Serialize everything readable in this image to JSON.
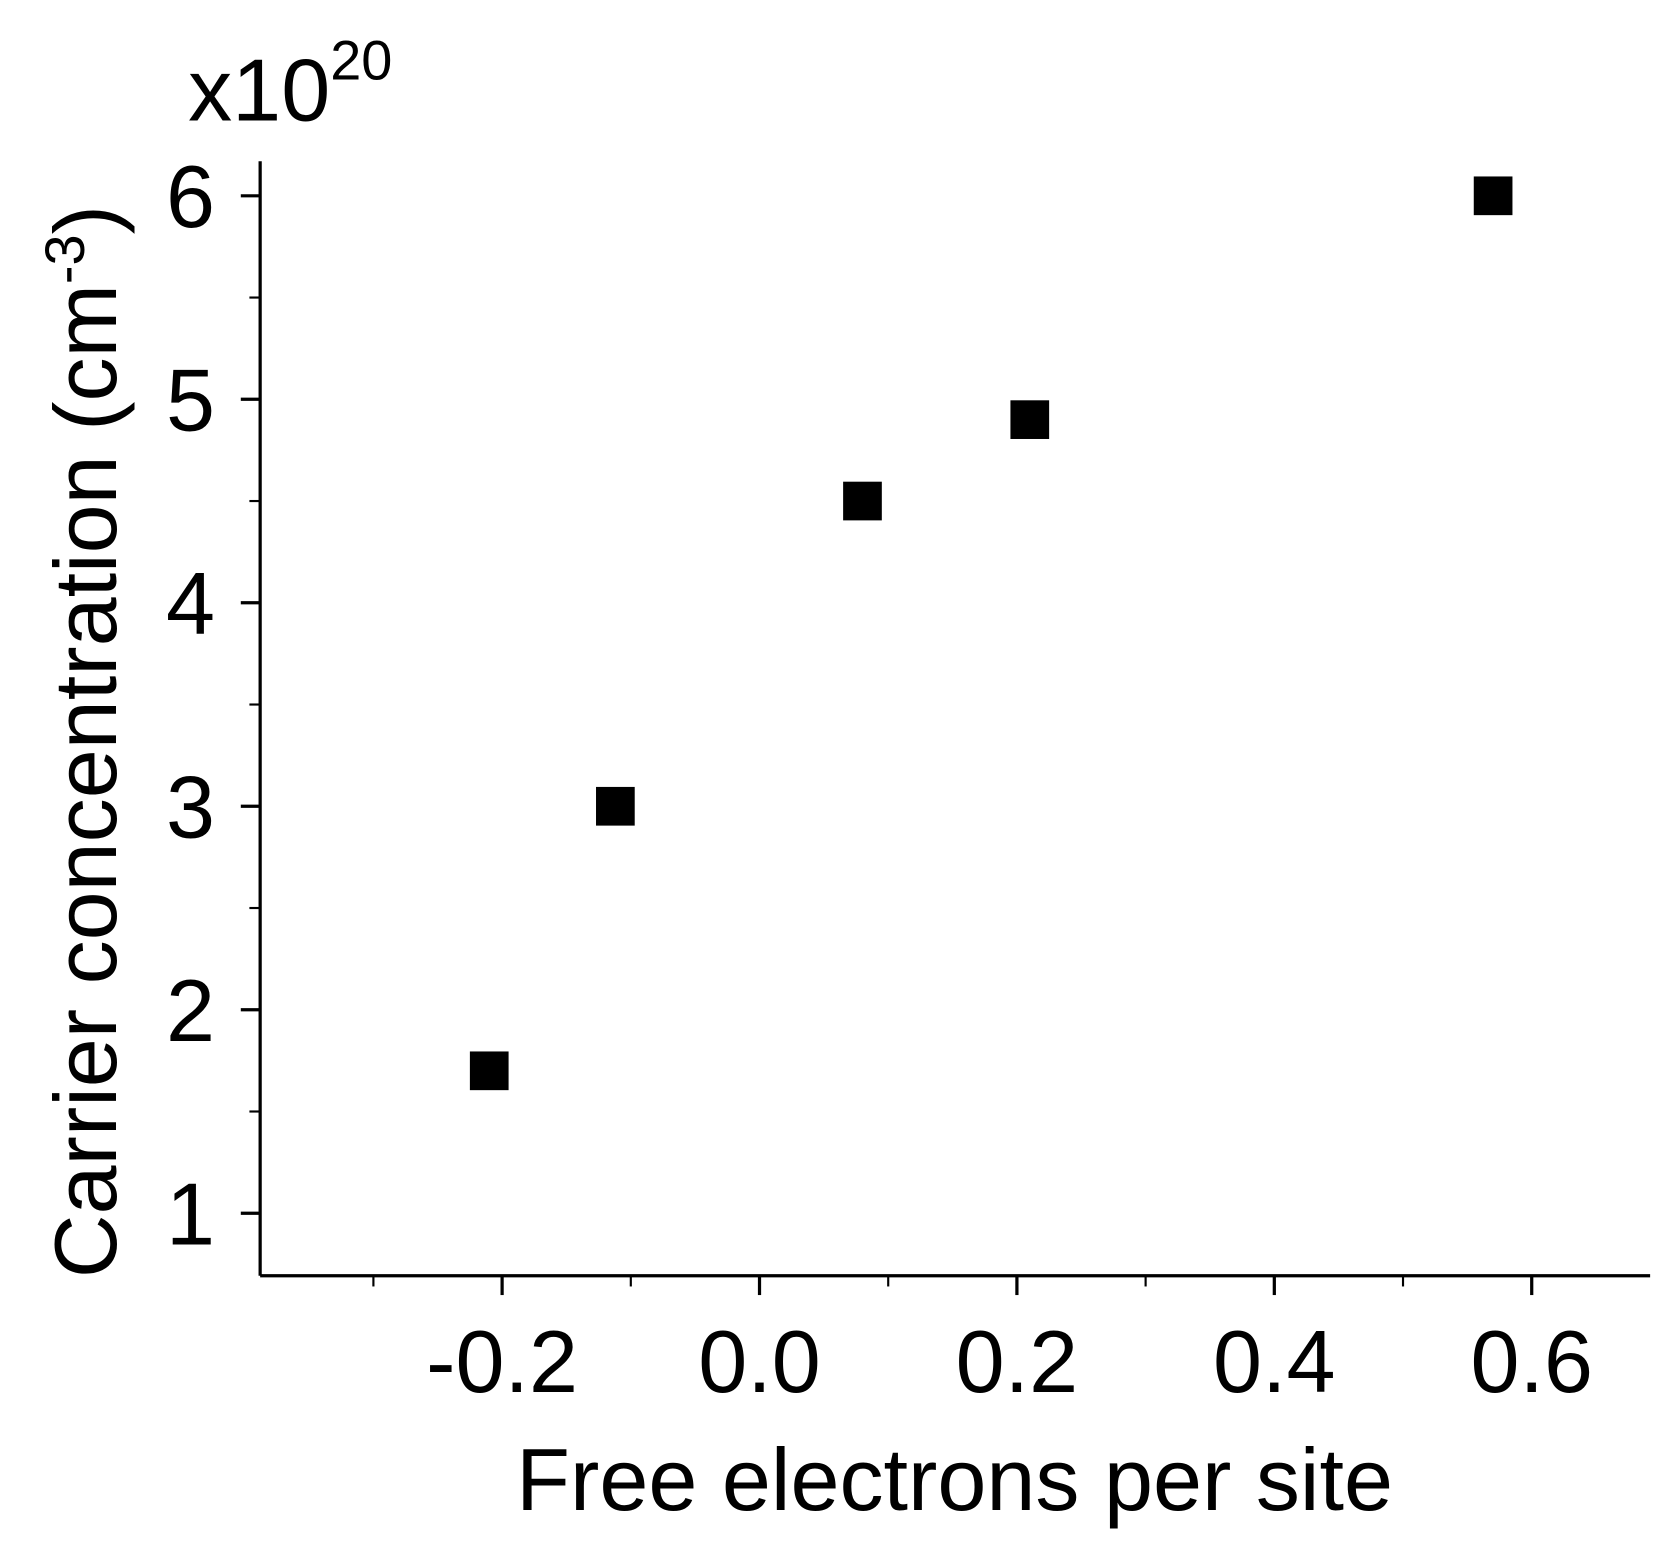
{
  "chart_data": {
    "type": "scatter",
    "x_label": "Free electrons per site",
    "y_label": "Carrier concentration (cm",
    "y_label_superscript": "-3",
    "y_label_end": ")",
    "y_multiplier": "x10",
    "y_multiplier_exponent": "20",
    "x": [
      -0.21,
      -0.112,
      0.08,
      0.21,
      0.57
    ],
    "series": [
      {
        "color": "#000000",
        "values": [
          1.7,
          3.0,
          4.5,
          4.9,
          6.0
        ]
      }
    ],
    "xlim": [
      -0.388,
      0.692
    ],
    "ylim": [
      0.693,
      6.17
    ],
    "xticks": [
      -0.2,
      {
        "value": 0,
        "label": "0.0"
      },
      0.2,
      0.4,
      0.6
    ],
    "xminorticks": [
      -0.3,
      -0.1,
      0.1,
      0.3,
      0.5
    ],
    "yticks": [
      1,
      2,
      3,
      4,
      5,
      6
    ],
    "yminorticks": [
      1.5,
      2.5,
      3.5,
      4.5,
      5.5
    ],
    "grid": false
  }
}
